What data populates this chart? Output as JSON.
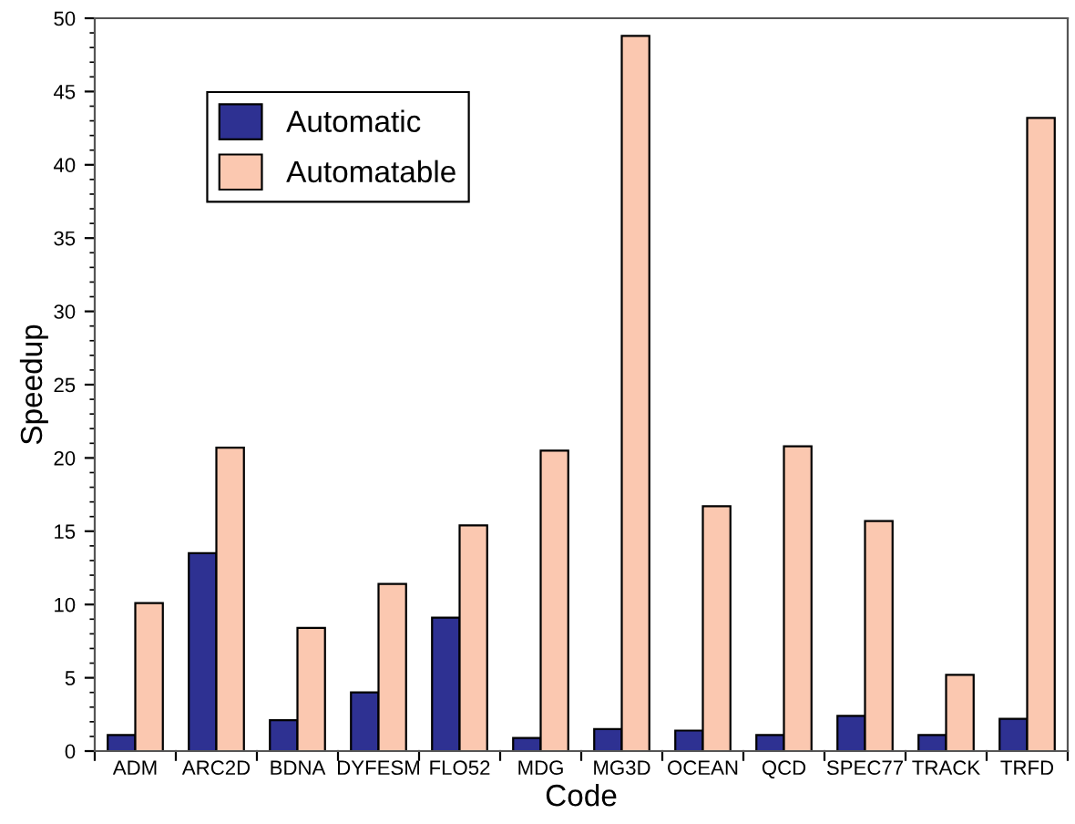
{
  "chart_data": {
    "type": "bar",
    "xlabel": "Code",
    "ylabel": "Speedup",
    "categories": [
      "ADM",
      "ARC2D",
      "BDNA",
      "DYFESM",
      "FLO52",
      "MDG",
      "MG3D",
      "OCEAN",
      "QCD",
      "SPEC77",
      "TRACK",
      "TRFD"
    ],
    "series": [
      {
        "name": "Automatic",
        "color": "#2e3192",
        "values": [
          1.1,
          13.5,
          2.1,
          4.0,
          9.1,
          0.9,
          1.5,
          1.4,
          1.1,
          2.4,
          1.1,
          2.2
        ]
      },
      {
        "name": "Automatable",
        "color": "#fbc8b0",
        "values": [
          10.1,
          20.7,
          8.4,
          11.4,
          15.4,
          20.5,
          48.8,
          16.7,
          20.8,
          15.7,
          5.2,
          43.2
        ]
      }
    ],
    "ylim": [
      0,
      50
    ],
    "yticks": [
      0,
      5,
      10,
      15,
      20,
      25,
      30,
      35,
      40,
      45,
      50
    ],
    "grid": false,
    "legend": "top left"
  }
}
